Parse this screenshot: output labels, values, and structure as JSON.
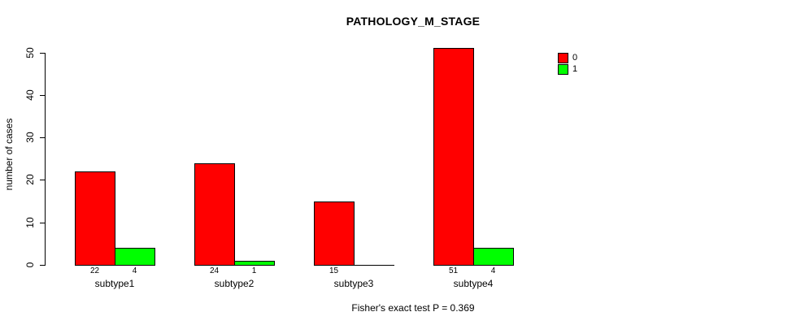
{
  "chart_data": {
    "type": "bar",
    "title": "PATHOLOGY_M_STAGE",
    "ylabel": "number of cases",
    "xlabel": "",
    "footer": "Fisher's exact test P = 0.369",
    "categories": [
      "subtype1",
      "subtype2",
      "subtype3",
      "subtype4"
    ],
    "series": [
      {
        "name": "0",
        "color": "#ff0000",
        "values": [
          22,
          24,
          15,
          51
        ]
      },
      {
        "name": "1",
        "color": "#00ff00",
        "values": [
          4,
          1,
          0,
          4
        ]
      }
    ],
    "ylim": [
      0,
      50
    ],
    "yticks": [
      0,
      10,
      20,
      30,
      40,
      50
    ],
    "grid": false,
    "legend_position": "top-right",
    "bar_border_color": "#000000",
    "value_labels_shown": true,
    "value_label_hidden_when_zero": true
  }
}
